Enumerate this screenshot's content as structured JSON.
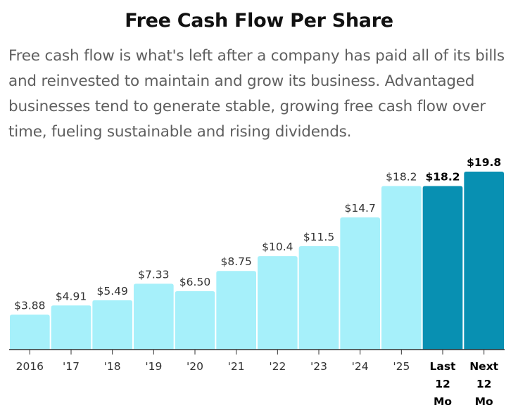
{
  "chart_data": {
    "type": "bar",
    "title": "Free Cash Flow Per Share",
    "subtitle": "Free cash flow is what's left after a company has paid all of its bills and reinvested to maintain and grow its business. Advantaged businesses tend to generate stable, growing free cash flow over time, fueling sustainable and rising dividends.",
    "xlabel": "",
    "ylabel": "",
    "ylim": [
      0,
      19.8
    ],
    "grid": false,
    "categories": [
      "2016",
      "'17",
      "'18",
      "'19",
      "'20",
      "'21",
      "'22",
      "'23",
      "'24",
      "'25",
      "Last 12 Mo",
      "Next 12 Mo"
    ],
    "category_lines": [
      [
        "2016"
      ],
      [
        "'17"
      ],
      [
        "'18"
      ],
      [
        "'19"
      ],
      [
        "'20"
      ],
      [
        "'21"
      ],
      [
        "'22"
      ],
      [
        "'23"
      ],
      [
        "'24"
      ],
      [
        "'25"
      ],
      [
        "Last",
        "12",
        "Mo"
      ],
      [
        "Next",
        "12",
        "Mo"
      ]
    ],
    "values": [
      3.88,
      4.91,
      5.49,
      7.33,
      6.5,
      8.75,
      10.4,
      11.5,
      14.7,
      18.2,
      18.2,
      19.8
    ],
    "value_labels": [
      "$3.88",
      "$4.91",
      "$5.49",
      "$7.33",
      "$6.50",
      "$8.75",
      "$10.4",
      "$11.5",
      "$14.7",
      "$18.2",
      "$18.2",
      "$19.8"
    ],
    "highlighted": [
      false,
      false,
      false,
      false,
      false,
      false,
      false,
      false,
      false,
      false,
      true,
      true
    ],
    "colors": {
      "bar": "#a6f0fa",
      "bar_highlight": "#0890b2",
      "axis": "#333333",
      "label": "#333333",
      "label_highlight": "#000000"
    }
  }
}
